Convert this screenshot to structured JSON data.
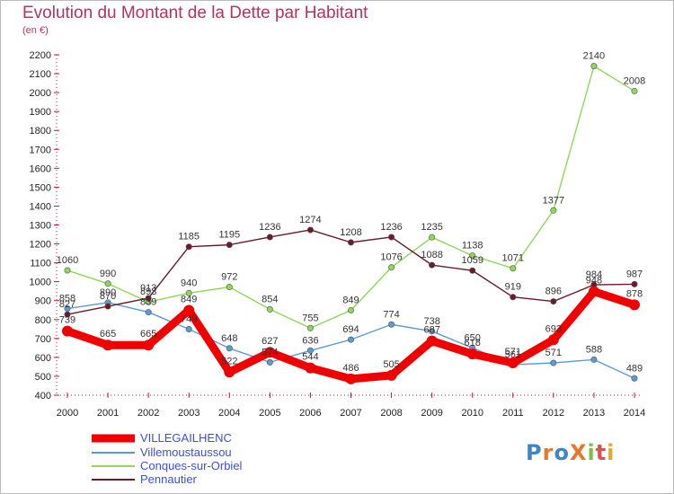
{
  "header": {
    "title": "Evolution du Montant de la Dette par Habitant",
    "subtitle": "(en €)"
  },
  "logo": {
    "text": "ProXiti",
    "colors": [
      "#3b86c6",
      "#e8762b",
      "#3b86c6",
      "#e8762b",
      "#7cc142",
      "#e84c4c",
      "#e8a92b"
    ]
  },
  "chart_data": {
    "type": "line",
    "title": "Evolution du Montant de la Dette par Habitant",
    "subtitle": "(en €)",
    "xlabel": "",
    "ylabel": "",
    "categories": [
      "2000",
      "2001",
      "2002",
      "2003",
      "2004",
      "2005",
      "2006",
      "2007",
      "2008",
      "2009",
      "2010",
      "2011",
      "2012",
      "2013",
      "2014"
    ],
    "ylim": [
      400,
      2200
    ],
    "yticks": [
      400,
      500,
      600,
      700,
      800,
      900,
      1000,
      1100,
      1200,
      1300,
      1400,
      1500,
      1600,
      1700,
      1800,
      1900,
      2000,
      2100,
      2200
    ],
    "grid": false,
    "legend": "bottom-left",
    "series": [
      {
        "name": "VILLEGAILHENC",
        "color": "#f00000",
        "values": [
          739,
          665,
          665,
          849,
          522,
          627,
          544,
          486,
          505,
          687,
          618,
          571,
          693,
          948,
          878
        ]
      },
      {
        "name": "Villemoustaussou",
        "color": "#5b9bd5",
        "values": [
          858,
          890,
          839,
          749,
          648,
          574,
          636,
          694,
          774,
          738,
          650,
          561,
          571,
          588,
          489
        ]
      },
      {
        "name": "Conques-sur-Orbiel",
        "color": "#8fd65a",
        "values": [
          1060,
          990,
          893,
          940,
          972,
          854,
          755,
          849,
          1076,
          1235,
          1138,
          1071,
          1377,
          2140,
          2008
        ]
      },
      {
        "name": "Pennautier",
        "color": "#6b1a2a",
        "values": [
          827,
          870,
          913,
          1185,
          1195,
          1236,
          1274,
          1208,
          1236,
          1088,
          1059,
          919,
          896,
          984,
          987
        ]
      }
    ]
  }
}
